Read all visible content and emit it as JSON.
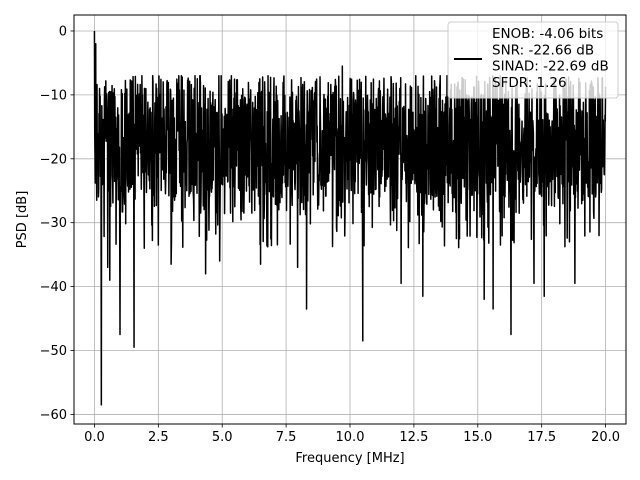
{
  "chart_data": {
    "type": "line",
    "title": "",
    "xlabel": "Frequency [MHz]",
    "ylabel": "PSD [dB]",
    "xlim": [
      -0.8,
      20.8
    ],
    "ylim": [
      -61.5,
      2.5
    ],
    "xticks": [
      0.0,
      2.5,
      5.0,
      7.5,
      10.0,
      12.5,
      15.0,
      17.5,
      20.0
    ],
    "xtick_labels": [
      "0.0",
      "2.5",
      "5.0",
      "7.5",
      "10.0",
      "12.5",
      "15.0",
      "17.5",
      "20.0"
    ],
    "yticks": [
      0,
      -10,
      -20,
      -30,
      -40,
      -50,
      -60
    ],
    "ytick_labels": [
      "0",
      "−10",
      "−20",
      "−30",
      "−40",
      "−50",
      "−60"
    ],
    "grid": true,
    "legend": {
      "placement": "upper-right",
      "lines": [
        "ENOB: -4.06 bits",
        "SNR: -22.66 dB",
        "SINAD: -22.69 dB",
        "SFDR: 1.26"
      ]
    },
    "series": [
      {
        "color": "#000000",
        "description_shape": "dense noise floor between about -10 and -32 dB across 0-20 MHz",
        "x_range": [
          0.0,
          20.0
        ],
        "band": [
          -32,
          -8
        ],
        "peak": {
          "x": 0.0,
          "y": 0.0
        },
        "notable_dips": [
          {
            "x": 0.27,
            "y": -58.5
          },
          {
            "x": 0.52,
            "y": -37.0
          },
          {
            "x": 0.6,
            "y": -39.0
          },
          {
            "x": 1.0,
            "y": -47.5
          },
          {
            "x": 1.55,
            "y": -49.5
          },
          {
            "x": 1.95,
            "y": -34.0
          },
          {
            "x": 2.5,
            "y": -33.5
          },
          {
            "x": 3.0,
            "y": -36.5
          },
          {
            "x": 4.35,
            "y": -38.0
          },
          {
            "x": 4.9,
            "y": -36.0
          },
          {
            "x": 6.5,
            "y": -36.5
          },
          {
            "x": 7.95,
            "y": -37.0
          },
          {
            "x": 8.3,
            "y": -43.5
          },
          {
            "x": 9.7,
            "y": -37.5
          },
          {
            "x": 10.5,
            "y": -48.5
          },
          {
            "x": 12.0,
            "y": -39.5
          },
          {
            "x": 12.85,
            "y": -41.5
          },
          {
            "x": 15.25,
            "y": -42.0
          },
          {
            "x": 15.6,
            "y": -43.5
          },
          {
            "x": 16.3,
            "y": -47.5
          },
          {
            "x": 17.2,
            "y": -39.5
          },
          {
            "x": 17.6,
            "y": -41.5
          },
          {
            "x": 18.8,
            "y": -39.5
          }
        ],
        "notable_peaks": [
          {
            "x": 0.05,
            "y": -2.0
          },
          {
            "x": 0.2,
            "y": -9.0
          },
          {
            "x": 9.7,
            "y": -5.5
          }
        ]
      }
    ]
  }
}
